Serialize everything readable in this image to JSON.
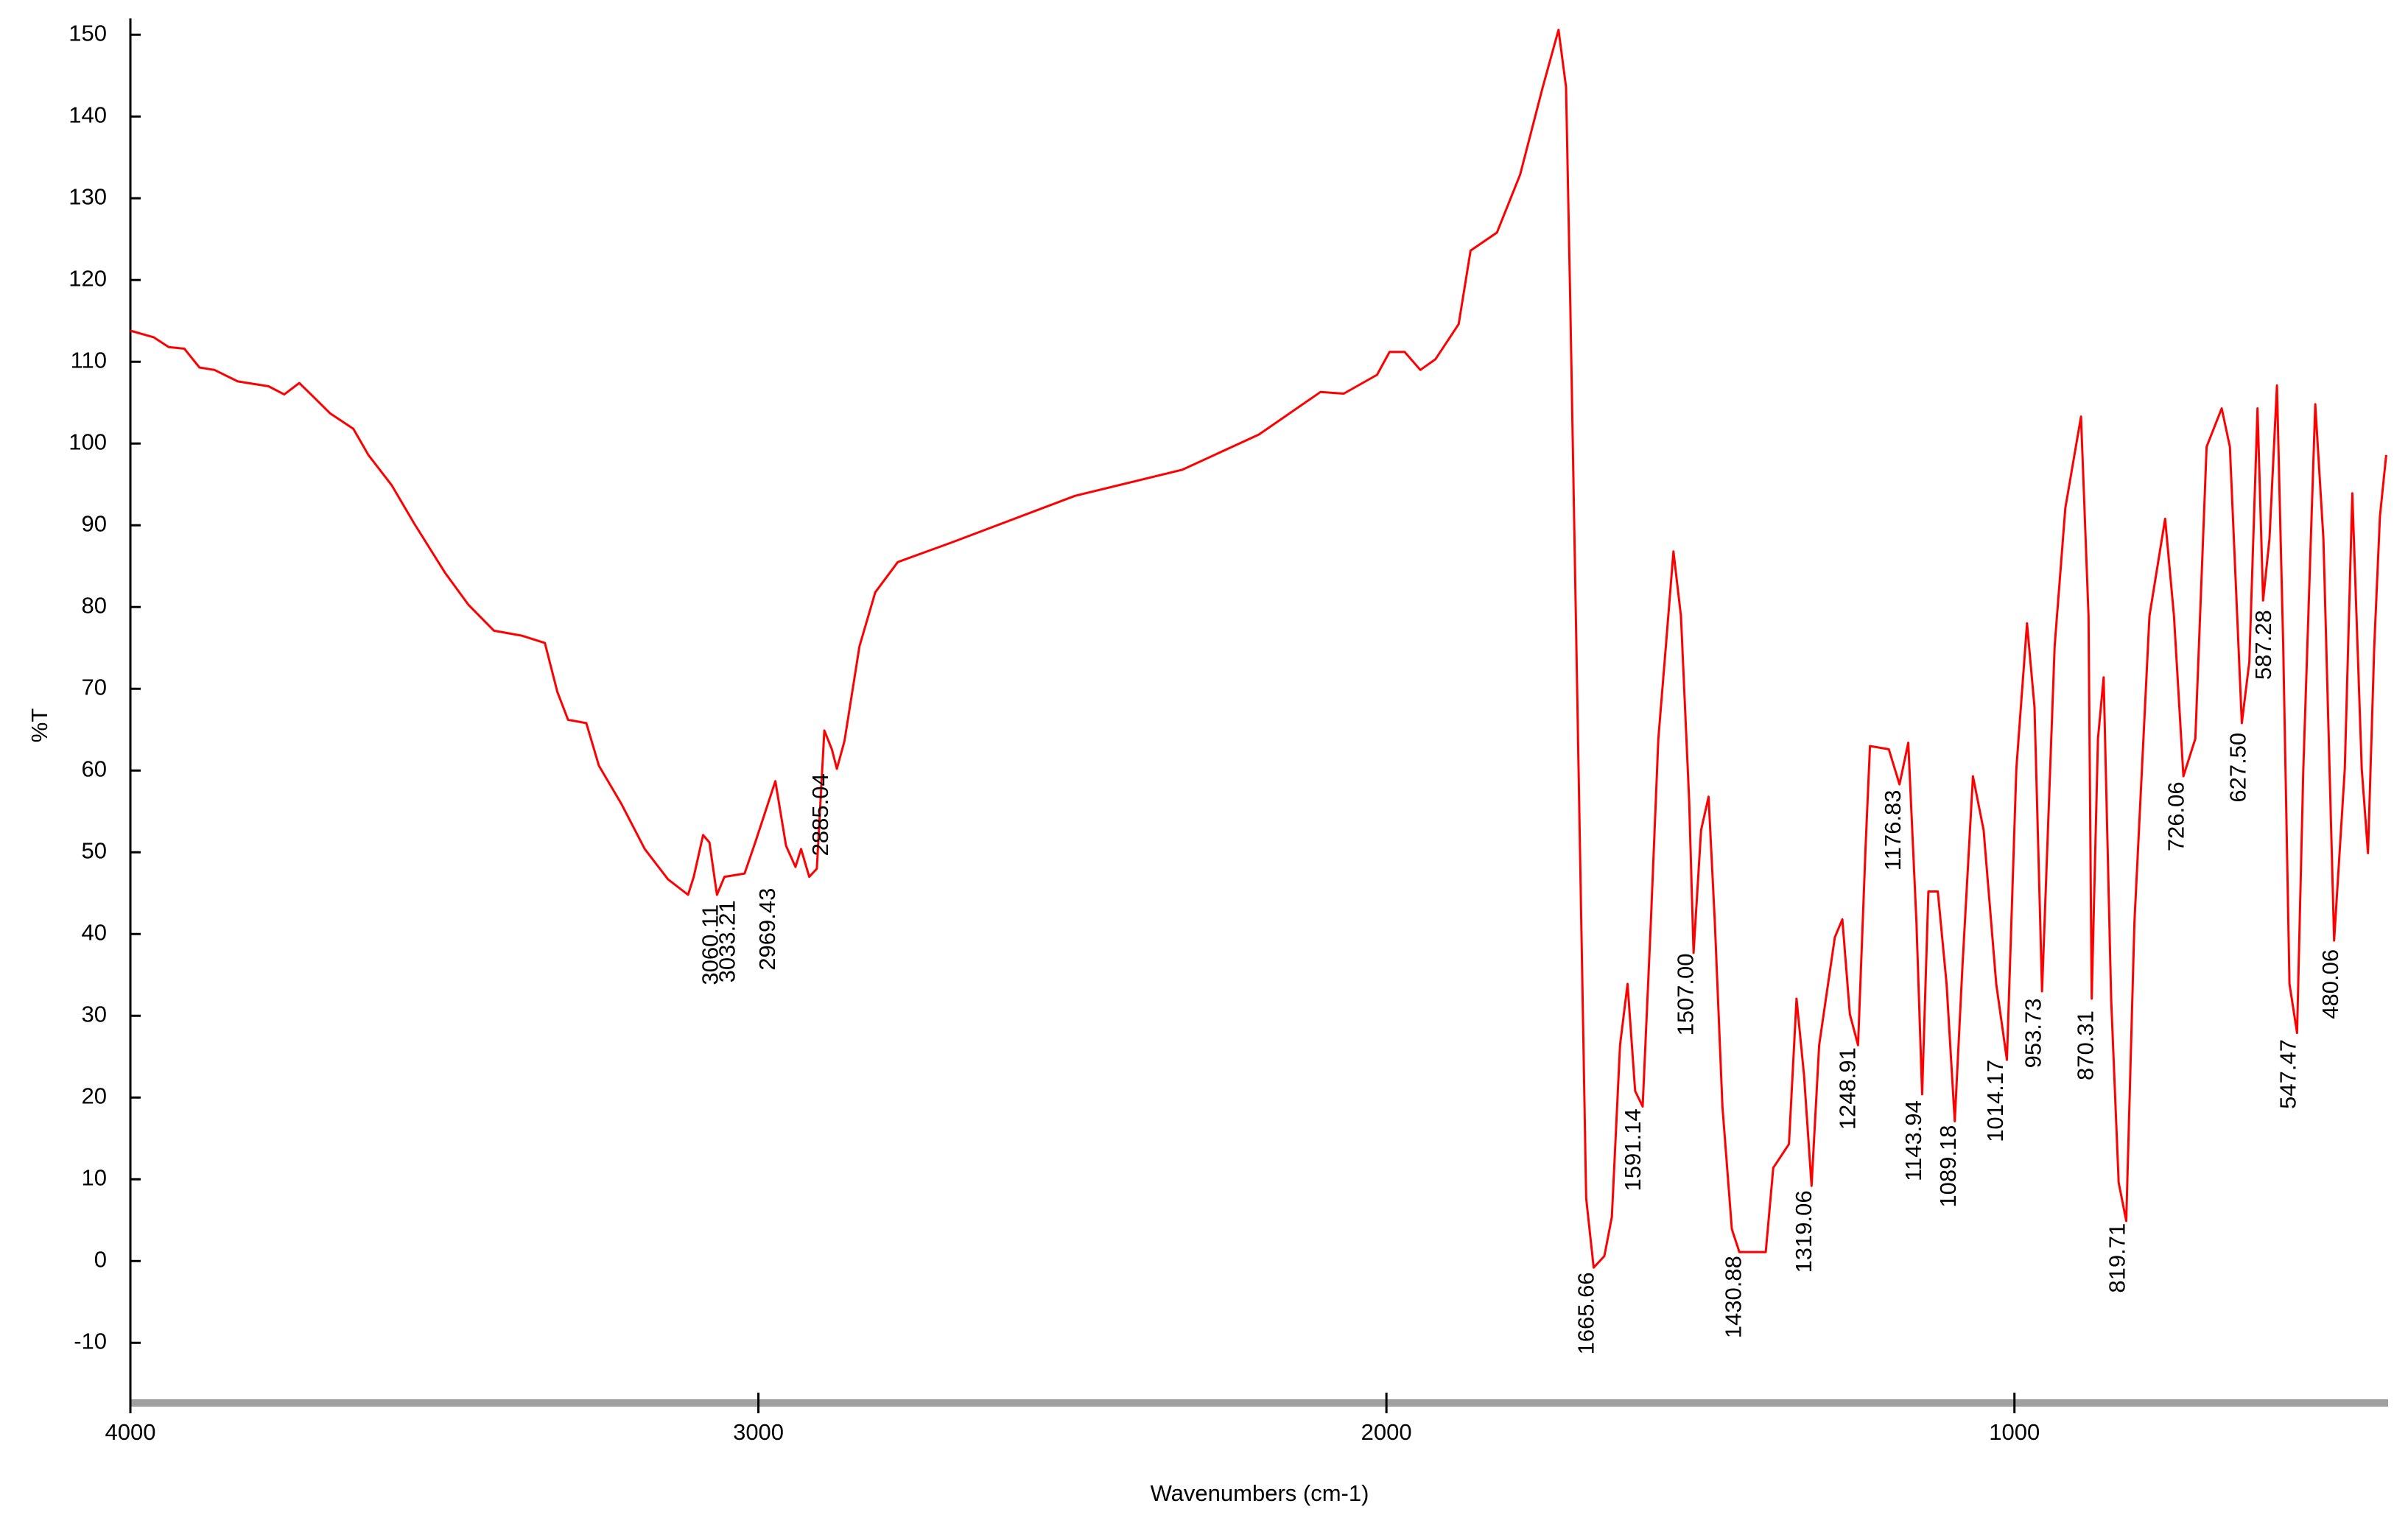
{
  "chart_data": {
    "type": "line",
    "xlabel": "Wavenumbers (cm-1)",
    "ylabel": "%T",
    "color": "#ff0000",
    "xlim": [
      4000,
      405
    ],
    "ylim": [
      -17,
      152
    ],
    "xticks": [
      4000,
      3000,
      2000,
      1000
    ],
    "yticks": [
      -10,
      0,
      10,
      20,
      30,
      40,
      50,
      60,
      70,
      80,
      90,
      100,
      110,
      120,
      130,
      140,
      150
    ],
    "x": [
      4000,
      3963,
      3939,
      3914,
      3890,
      3866,
      3829,
      3780,
      3755,
      3731,
      3707,
      3682,
      3645,
      3621,
      3584,
      3548,
      3499,
      3462,
      3421,
      3377,
      3340,
      3320,
      3303,
      3274,
      3254,
      3218,
      3181,
      3144,
      3112,
      3103,
      3088,
      3078,
      3066,
      3054,
      3022,
      3005,
      2973,
      2956,
      2941,
      2932,
      2919,
      2907,
      2895,
      2883,
      2875,
      2863,
      2839,
      2814,
      2778,
      2692,
      2496,
      2325,
      2203,
      2105,
      2068,
      2015,
      1995,
      1971,
      1946,
      1922,
      1885,
      1866,
      1824,
      1787,
      1751,
      1726,
      1714,
      1707,
      1694,
      1682,
      1670,
      1653,
      1641,
      1628,
      1616,
      1604,
      1592,
      1579,
      1567,
      1555,
      1543,
      1531,
      1518,
      1511,
      1499,
      1487,
      1477,
      1465,
      1450,
      1438,
      1396,
      1384,
      1359,
      1347,
      1335,
      1323,
      1311,
      1286,
      1274,
      1262,
      1249,
      1237,
      1230,
      1200,
      1183,
      1169,
      1156,
      1147,
      1137,
      1122,
      1108,
      1095,
      1083,
      1066,
      1049,
      1029,
      1012,
      997,
      980,
      968,
      956,
      936,
      919,
      894,
      882,
      877,
      867,
      858,
      846,
      834,
      822,
      809,
      785,
      760,
      746,
      731,
      712,
      694,
      670,
      657,
      638,
      626,
      613,
      604,
      594,
      582,
      572,
      562,
      550,
      540,
      521,
      508,
      491,
      474,
      462,
      447,
      437,
      427,
      418,
      408
    ],
    "values": [
      113.8,
      113,
      111.8,
      111.6,
      109.3,
      109,
      107.6,
      107,
      106,
      107.4,
      105.6,
      103.7,
      101.8,
      98.6,
      94.9,
      90.2,
      84.2,
      80.3,
      77.1,
      76.5,
      75.6,
      69.6,
      66.2,
      65.8,
      60.6,
      55.9,
      50.4,
      46.7,
      44.8,
      47,
      52.1,
      51.2,
      44.8,
      47,
      47.4,
      51.2,
      58.7,
      50.8,
      48.2,
      50.4,
      47,
      48,
      64.9,
      62.6,
      60.2,
      63.6,
      75.2,
      81.8,
      85.5,
      87.9,
      93.6,
      96.8,
      101.1,
      106.3,
      106.1,
      108.4,
      111.2,
      111.2,
      109,
      110.3,
      114.6,
      123.6,
      125.8,
      132.9,
      143.6,
      150.6,
      143.6,
      116.4,
      60.2,
      7.7,
      -0.8,
      0.6,
      5.4,
      26.4,
      33.9,
      20.8,
      18.9,
      41.4,
      63.9,
      75.2,
      86.8,
      78.9,
      56.4,
      37.7,
      52.7,
      56.8,
      41.4,
      18.9,
      3.9,
      1.1,
      1.1,
      11.4,
      14.3,
      32.1,
      22.7,
      9.2,
      26.4,
      39.6,
      41.8,
      30.2,
      26.4,
      50.8,
      63,
      62.6,
      58.3,
      63.4,
      41.4,
      20.4,
      45.2,
      45.2,
      33.9,
      17.1,
      35.8,
      59.3,
      52.7,
      33.9,
      24.6,
      60.2,
      78,
      67.7,
      33,
      75.2,
      92.1,
      103.3,
      78.9,
      32.1,
      63.9,
      71.4,
      32.1,
      9.6,
      4.9,
      41.4,
      78.9,
      90.8,
      78.9,
      59.3,
      63.9,
      99.6,
      104.3,
      99.6,
      65.8,
      73.3,
      104.3,
      80.8,
      88.3,
      107.1,
      75.2,
      33.9,
      27.9,
      60.2,
      104.8,
      88.3,
      39.2,
      60.2,
      93.9,
      60.2,
      49.9,
      75.2,
      91.1,
      98.6
    ],
    "peaks": [
      {
        "value": 3060.11,
        "label": "3060.11",
        "y": 44
      },
      {
        "value": 3033.21,
        "label": "3033.21",
        "y": 44.5
      },
      {
        "value": 2969.43,
        "label": "2969.43",
        "y": 46
      },
      {
        "value": 2885.04,
        "label": "2885.04",
        "y": 60
      },
      {
        "value": 1665.66,
        "label": "1665.66",
        "y": -1
      },
      {
        "value": 1591.14,
        "label": "1591.14",
        "y": 19
      },
      {
        "value": 1507.0,
        "label": "1507.00",
        "y": 38
      },
      {
        "value": 1430.88,
        "label": "1430.88",
        "y": 1
      },
      {
        "value": 1319.06,
        "label": "1319.06",
        "y": 9
      },
      {
        "value": 1248.91,
        "label": "1248.91",
        "y": 26.5
      },
      {
        "value": 1176.83,
        "label": "1176.83",
        "y": 58
      },
      {
        "value": 1143.94,
        "label": "1143.94",
        "y": 20
      },
      {
        "value": 1089.18,
        "label": "1089.18",
        "y": 17
      },
      {
        "value": 1014.17,
        "label": "1014.17",
        "y": 25
      },
      {
        "value": 953.73,
        "label": "953.73",
        "y": 32.5
      },
      {
        "value": 870.31,
        "label": "870.31",
        "y": 31
      },
      {
        "value": 819.71,
        "label": "819.71",
        "y": 5
      },
      {
        "value": 726.06,
        "label": "726.06",
        "y": 59
      },
      {
        "value": 627.5,
        "label": "627.50",
        "y": 65
      },
      {
        "value": 587.28,
        "label": "587.28",
        "y": 80
      },
      {
        "value": 547.47,
        "label": "547.47",
        "y": 27.5
      },
      {
        "value": 480.06,
        "label": "480.06",
        "y": 38.5
      }
    ]
  }
}
